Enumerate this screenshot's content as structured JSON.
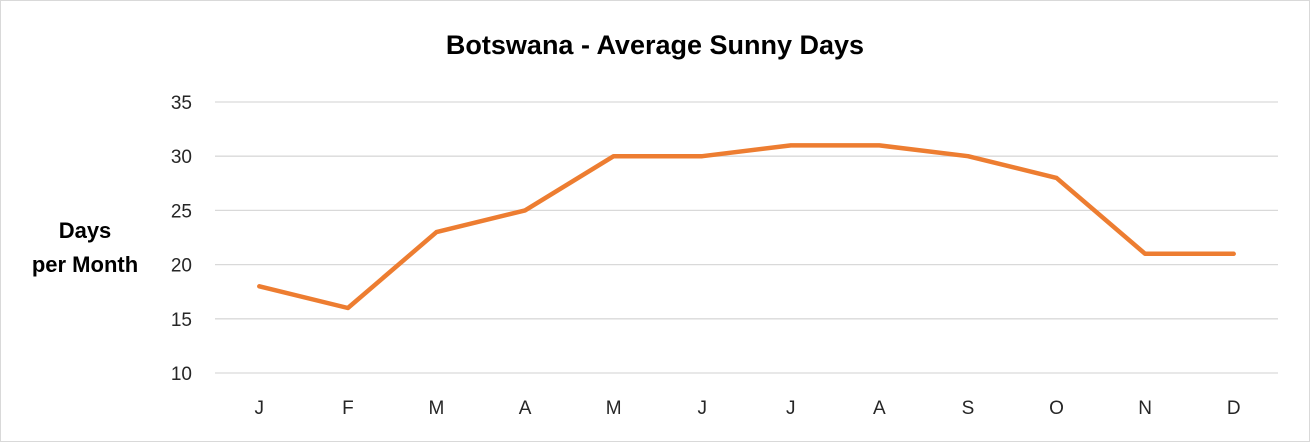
{
  "chart_data": {
    "type": "line",
    "title": "Botswana - Average Sunny Days",
    "ylabel_lines": [
      "Days",
      "per Month"
    ],
    "xlabel": "",
    "categories": [
      "J",
      "F",
      "M",
      "A",
      "M",
      "J",
      "J",
      "A",
      "S",
      "O",
      "N",
      "D"
    ],
    "series": [
      {
        "values": [
          18,
          16,
          23,
          25,
          30,
          30,
          31,
          31,
          30,
          28,
          21,
          21
        ],
        "color": "#ED7D31"
      }
    ],
    "ylim": [
      10,
      35
    ],
    "yticks": [
      10,
      15,
      20,
      25,
      30,
      35
    ],
    "grid": true,
    "legend": "none"
  }
}
